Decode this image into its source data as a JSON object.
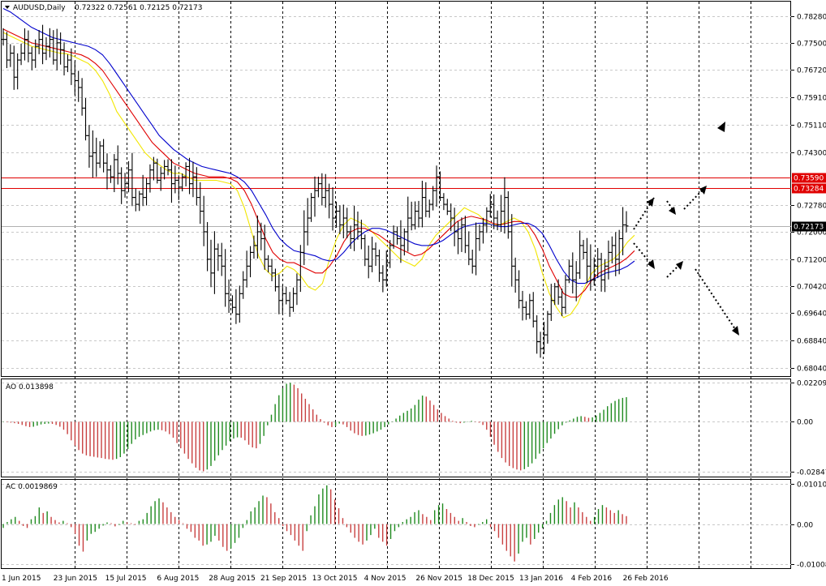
{
  "header": {
    "symbol": "AUDUSD,Daily",
    "ohlc": "0.72322 0.72561 0.72125 0.72173"
  },
  "colors": {
    "background": "#ffffff",
    "bars": "#000000",
    "ma_fast": "#f2e600",
    "ma_mid": "#e00000",
    "ma_slow": "#0000cc",
    "resistance": "#e00000",
    "histogram_up": "#1f8a1f",
    "histogram_down": "#c84040"
  },
  "chart_data": [
    {
      "type": "candlestick",
      "name": "main",
      "ylim": [
        0.678,
        0.787
      ],
      "y_ticks": [
        0.7828,
        0.775,
        0.7672,
        0.7591,
        0.7511,
        0.743,
        0.7278,
        0.72,
        0.712,
        0.7042,
        0.6964,
        0.6884,
        0.6804
      ],
      "y_tick_labels": [
        "0.78280",
        "0.77500",
        "0.76720",
        "0.75910",
        "0.75110",
        "0.74300",
        "0.72780",
        "0.72000",
        "0.71200",
        "0.70420",
        "0.69640",
        "0.68840",
        "0.68040"
      ],
      "x_labels": [
        "1 Jun 2015",
        "23 Jun 2015",
        "15 Jul 2015",
        "6 Aug 2015",
        "28 Aug 2015",
        "21 Sep 2015",
        "13 Oct 2015",
        "4 Nov 2015",
        "26 Nov 2015",
        "18 Dec 2015",
        "13 Jan 2016",
        "4 Feb 2016",
        "26 Feb 2016"
      ],
      "close_series": [
        0.776,
        0.77,
        0.772,
        0.765,
        0.77,
        0.772,
        0.776,
        0.772,
        0.77,
        0.774,
        0.776,
        0.772,
        0.774,
        0.776,
        0.77,
        0.775,
        0.773,
        0.768,
        0.77,
        0.766,
        0.764,
        0.762,
        0.756,
        0.748,
        0.742,
        0.743,
        0.74,
        0.745,
        0.74,
        0.738,
        0.736,
        0.741,
        0.737,
        0.732,
        0.734,
        0.738,
        0.73,
        0.728,
        0.731,
        0.73,
        0.734,
        0.738,
        0.74,
        0.735,
        0.737,
        0.739,
        0.738,
        0.734,
        0.735,
        0.733,
        0.736,
        0.739,
        0.734,
        0.736,
        0.73,
        0.726,
        0.72,
        0.712,
        0.708,
        0.715,
        0.713,
        0.71,
        0.702,
        0.7,
        0.698,
        0.696,
        0.702,
        0.706,
        0.71,
        0.714,
        0.716,
        0.72,
        0.718,
        0.712,
        0.71,
        0.708,
        0.704,
        0.7,
        0.702,
        0.7,
        0.698,
        0.702,
        0.706,
        0.714,
        0.72,
        0.724,
        0.73,
        0.732,
        0.734,
        0.73,
        0.732,
        0.728,
        0.724,
        0.726,
        0.722,
        0.724,
        0.72,
        0.718,
        0.722,
        0.72,
        0.718,
        0.712,
        0.71,
        0.715,
        0.713,
        0.708,
        0.706,
        0.711,
        0.716,
        0.72,
        0.718,
        0.716,
        0.72,
        0.724,
        0.722,
        0.726,
        0.724,
        0.73,
        0.726,
        0.728,
        0.732,
        0.736,
        0.73,
        0.728,
        0.726,
        0.724,
        0.72,
        0.718,
        0.722,
        0.716,
        0.712,
        0.71,
        0.718,
        0.72,
        0.722,
        0.726,
        0.728,
        0.724,
        0.722,
        0.726,
        0.73,
        0.72,
        0.71,
        0.706,
        0.7,
        0.698,
        0.696,
        0.7,
        0.694,
        0.688,
        0.686,
        0.69,
        0.696,
        0.7,
        0.704,
        0.701,
        0.698,
        0.706,
        0.71,
        0.706,
        0.708,
        0.716,
        0.714,
        0.71,
        0.706,
        0.71,
        0.712,
        0.706,
        0.71,
        0.714,
        0.716,
        0.712,
        0.718,
        0.722,
        0.7217
      ],
      "ma_fast": [
        0.778,
        0.777,
        0.776,
        0.775,
        0.774,
        0.7735,
        0.773,
        0.7725,
        0.772,
        0.7718,
        0.771,
        0.77,
        0.769,
        0.767,
        0.764,
        0.76,
        0.755,
        0.752,
        0.749,
        0.746,
        0.743,
        0.741,
        0.7395,
        0.738,
        0.737,
        0.737,
        0.736,
        0.735,
        0.735,
        0.735,
        0.735,
        0.7345,
        0.734,
        0.732,
        0.727,
        0.72,
        0.713,
        0.709,
        0.707,
        0.708,
        0.71,
        0.709,
        0.707,
        0.704,
        0.703,
        0.705,
        0.712,
        0.718,
        0.722,
        0.724,
        0.723,
        0.722,
        0.72,
        0.718,
        0.716,
        0.714,
        0.712,
        0.711,
        0.71,
        0.712,
        0.716,
        0.719,
        0.721,
        0.723,
        0.725,
        0.727,
        0.726,
        0.725,
        0.723,
        0.722,
        0.722,
        0.723,
        0.724,
        0.723,
        0.72,
        0.715,
        0.708,
        0.702,
        0.698,
        0.695,
        0.696,
        0.699,
        0.704,
        0.708,
        0.71,
        0.711,
        0.712,
        0.714,
        0.717,
        0.719
      ],
      "ma_mid": [
        0.779,
        0.778,
        0.777,
        0.776,
        0.775,
        0.7745,
        0.774,
        0.7735,
        0.773,
        0.7725,
        0.772,
        0.7715,
        0.7705,
        0.769,
        0.767,
        0.764,
        0.761,
        0.758,
        0.755,
        0.752,
        0.749,
        0.746,
        0.744,
        0.742,
        0.74,
        0.739,
        0.738,
        0.737,
        0.7365,
        0.736,
        0.736,
        0.736,
        0.7355,
        0.7345,
        0.732,
        0.728,
        0.723,
        0.718,
        0.714,
        0.712,
        0.711,
        0.711,
        0.71,
        0.709,
        0.708,
        0.708,
        0.71,
        0.713,
        0.717,
        0.72,
        0.721,
        0.721,
        0.72,
        0.719,
        0.7175,
        0.716,
        0.715,
        0.714,
        0.713,
        0.7135,
        0.715,
        0.717,
        0.719,
        0.721,
        0.723,
        0.724,
        0.7245,
        0.724,
        0.7235,
        0.7225,
        0.722,
        0.7225,
        0.723,
        0.723,
        0.722,
        0.719,
        0.715,
        0.71,
        0.706,
        0.702,
        0.701,
        0.701,
        0.703,
        0.706,
        0.708,
        0.709,
        0.71,
        0.711,
        0.7125,
        0.7145
      ],
      "ma_slow": [
        0.785,
        0.784,
        0.7825,
        0.781,
        0.7795,
        0.7785,
        0.7775,
        0.7765,
        0.776,
        0.7755,
        0.775,
        0.7745,
        0.774,
        0.773,
        0.7715,
        0.769,
        0.766,
        0.763,
        0.76,
        0.757,
        0.754,
        0.751,
        0.748,
        0.746,
        0.744,
        0.7425,
        0.741,
        0.74,
        0.739,
        0.7385,
        0.738,
        0.7375,
        0.737,
        0.736,
        0.7345,
        0.732,
        0.7285,
        0.725,
        0.721,
        0.718,
        0.716,
        0.7145,
        0.714,
        0.7135,
        0.713,
        0.712,
        0.7115,
        0.712,
        0.714,
        0.7165,
        0.7185,
        0.72,
        0.721,
        0.721,
        0.7205,
        0.7195,
        0.7185,
        0.7175,
        0.7165,
        0.716,
        0.716,
        0.7165,
        0.7175,
        0.719,
        0.7205,
        0.7215,
        0.722,
        0.7225,
        0.7225,
        0.722,
        0.7215,
        0.7215,
        0.722,
        0.7225,
        0.7225,
        0.7215,
        0.7195,
        0.716,
        0.712,
        0.7085,
        0.706,
        0.705,
        0.705,
        0.706,
        0.707,
        0.708,
        0.7085,
        0.709,
        0.71,
        0.7115
      ],
      "horizontal_lines": [
        {
          "label": "0.73590",
          "value": 0.7359
        },
        {
          "label": "0.73284",
          "value": 0.73284
        }
      ],
      "current_price_label": "0.72173",
      "current_price": 0.72173
    },
    {
      "type": "bar",
      "name": "AO",
      "label": "AO 0.013898",
      "y_tick_labels": [
        "0.022092",
        "0.00",
        "-0.028473"
      ],
      "y_ticks": [
        0.022092,
        0.0,
        -0.028473
      ],
      "ylim": [
        -0.031,
        0.024
      ],
      "values": [
        -0.0002,
        -0.0003,
        -0.0005,
        -0.0008,
        -0.0012,
        -0.0018,
        -0.0025,
        -0.003,
        -0.0028,
        -0.0022,
        -0.0015,
        -0.0012,
        -0.001,
        -0.0012,
        -0.0018,
        -0.0028,
        -0.0045,
        -0.007,
        -0.0105,
        -0.0135,
        -0.016,
        -0.018,
        -0.019,
        -0.0195,
        -0.0198,
        -0.0202,
        -0.0205,
        -0.021,
        -0.0212,
        -0.0215,
        -0.021,
        -0.02,
        -0.018,
        -0.0155,
        -0.0125,
        -0.01,
        -0.0085,
        -0.0075,
        -0.0065,
        -0.0055,
        -0.0048,
        -0.0045,
        -0.0048,
        -0.0055,
        -0.007,
        -0.009,
        -0.012,
        -0.015,
        -0.018,
        -0.021,
        -0.0235,
        -0.026,
        -0.0275,
        -0.028,
        -0.027,
        -0.025,
        -0.022,
        -0.019,
        -0.016,
        -0.0135,
        -0.011,
        -0.0095,
        -0.0088,
        -0.009,
        -0.0105,
        -0.013,
        -0.0145,
        -0.015,
        -0.0125,
        -0.008,
        -0.002,
        0.004,
        0.01,
        0.015,
        0.019,
        0.0215,
        0.022,
        0.021,
        0.019,
        0.016,
        0.013,
        0.01,
        0.007,
        0.004,
        0.0015,
        -0.0005,
        -0.002,
        -0.003,
        -0.0025,
        -0.001,
        -0.0015,
        -0.003,
        -0.005,
        -0.0065,
        -0.0075,
        -0.008,
        -0.0078,
        -0.0072,
        -0.0065,
        -0.0055,
        -0.0045,
        -0.003,
        -0.0015,
        0.0002,
        0.0018,
        0.0035,
        0.005,
        0.0062,
        0.0075,
        0.0095,
        0.0125,
        0.0148,
        0.0142,
        0.012,
        0.0095,
        0.007,
        0.005,
        0.0032,
        0.0018,
        0.0005,
        -0.0005,
        -0.0008,
        -0.0005,
        0.0002,
        0.0005,
        0.0002,
        -0.0005,
        -0.0018,
        -0.0045,
        -0.0085,
        -0.013,
        -0.017,
        -0.0205,
        -0.023,
        -0.025,
        -0.0262,
        -0.027,
        -0.0275,
        -0.0268,
        -0.0255,
        -0.0235,
        -0.021,
        -0.018,
        -0.015,
        -0.012,
        -0.0095,
        -0.0068,
        -0.0042,
        -0.002,
        -0.0005,
        0.0008,
        0.0018,
        0.0028,
        0.0032,
        0.0028,
        0.0022,
        0.0025,
        0.0035,
        0.005,
        0.0068,
        0.0088,
        0.0105,
        0.0118,
        0.0128,
        0.0135,
        0.0139
      ]
    },
    {
      "type": "bar",
      "name": "AC",
      "label": "AC 0.0019869",
      "y_tick_labels": [
        "0.010102",
        "0.00",
        "-0.010080"
      ],
      "y_ticks": [
        0.010102,
        0.0,
        -0.01008
      ],
      "ylim": [
        -0.0112,
        0.0112
      ],
      "values": [
        -0.001,
        0.0005,
        0.0012,
        0.0018,
        0.0008,
        -0.0005,
        -0.001,
        0.0012,
        0.002,
        0.0042,
        0.0028,
        0.0032,
        0.0018,
        0.001,
        0.0004,
        0.0008,
        0.0002,
        -0.0008,
        -0.0025,
        -0.0055,
        -0.007,
        -0.0042,
        -0.0025,
        -0.002,
        -0.0012,
        -0.0004,
        0.0004,
        0.0002,
        -0.0006,
        -0.0002,
        0.0008,
        0.0004,
        0.0002,
        -0.0002,
        0.0008,
        0.0012,
        0.0028,
        0.0045,
        0.0058,
        0.0065,
        0.0055,
        0.0042,
        0.003,
        0.0018,
        0.001,
        0.0002,
        -0.0012,
        -0.002,
        -0.0035,
        -0.0042,
        -0.0055,
        -0.0052,
        -0.0045,
        -0.003,
        -0.0042,
        -0.0058,
        -0.0068,
        -0.0062,
        -0.0048,
        -0.0035,
        -0.001,
        0.001,
        0.0032,
        0.0042,
        0.0058,
        0.0072,
        0.0068,
        0.0052,
        0.003,
        0.0015,
        -0.0005,
        -0.0018,
        -0.0028,
        -0.0042,
        -0.0055,
        -0.0068,
        -0.0018,
        0.0022,
        0.0045,
        0.0075,
        0.009,
        0.0098,
        0.0088,
        0.0062,
        0.004,
        0.0015,
        -0.0008,
        -0.0022,
        -0.0035,
        -0.0045,
        -0.0052,
        -0.0042,
        -0.0028,
        -0.0012,
        -0.0035,
        -0.0045,
        -0.0055,
        -0.0038,
        -0.0018,
        -0.0008,
        0.0005,
        0.0012,
        0.0018,
        0.003,
        0.0035,
        0.0025,
        0.0018,
        0.001,
        0.0035,
        0.0048,
        0.0052,
        0.0038,
        0.0028,
        0.0018,
        0.0008,
        0.0015,
        0.0005,
        -0.0005,
        -0.0008,
        -0.0002,
        0.0005,
        0.0012,
        -0.0008,
        -0.0018,
        -0.0035,
        -0.0052,
        -0.0068,
        -0.0082,
        -0.0095,
        -0.0075,
        -0.0045,
        -0.0035,
        -0.0052,
        -0.0038,
        -0.0022,
        -0.001,
        0.0008,
        0.0028,
        0.0048,
        0.0062,
        0.0068,
        0.0058,
        0.0042,
        0.0055,
        0.0042,
        0.003,
        0.0018,
        0.0008,
        0.0018,
        0.0038,
        0.0048,
        0.0042,
        0.0035,
        0.0028,
        0.0035,
        0.0025,
        0.002
      ]
    }
  ]
}
